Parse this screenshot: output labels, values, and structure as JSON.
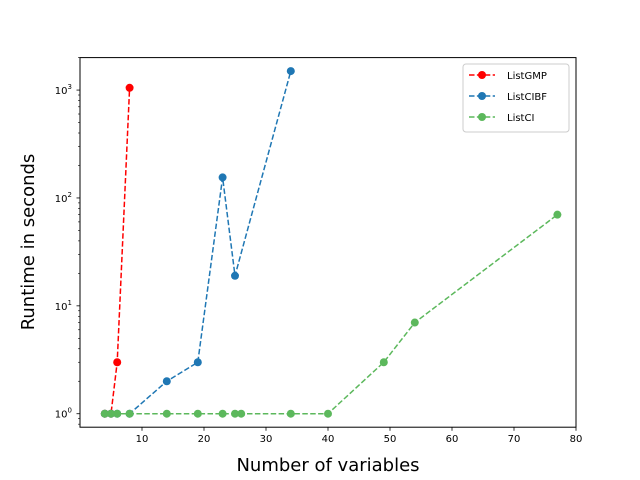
{
  "chart_data": {
    "type": "line",
    "title": "",
    "xlabel": "Number of variables",
    "ylabel": "Runtime in seconds",
    "xlim": [
      0,
      80
    ],
    "ylim": [
      0.75,
      2000
    ],
    "yscale": "log",
    "grid": false,
    "legend_position": "top-right",
    "x_ticks": [
      10,
      20,
      30,
      40,
      50,
      60,
      70,
      80
    ],
    "y_ticks": [
      1,
      10,
      100,
      1000
    ],
    "y_tick_labels": [
      {
        "base": "10",
        "exp": "0"
      },
      {
        "base": "10",
        "exp": "1"
      },
      {
        "base": "10",
        "exp": "2"
      },
      {
        "base": "10",
        "exp": "3"
      }
    ],
    "series": [
      {
        "name": "ListGMP",
        "color": "#ff0000",
        "points": [
          [
            4,
            1
          ],
          [
            5,
            1
          ],
          [
            6,
            3
          ],
          [
            8,
            1050
          ]
        ]
      },
      {
        "name": "ListCIBF",
        "color": "#1f77b4",
        "points": [
          [
            4,
            1
          ],
          [
            5,
            1
          ],
          [
            6,
            1
          ],
          [
            8,
            1
          ],
          [
            14,
            2
          ],
          [
            19,
            3
          ],
          [
            23,
            155
          ],
          [
            25,
            19
          ],
          [
            34,
            1500
          ]
        ]
      },
      {
        "name": "ListCI",
        "color": "#5cb85c",
        "points": [
          [
            4,
            1
          ],
          [
            5,
            1
          ],
          [
            6,
            1
          ],
          [
            8,
            1
          ],
          [
            14,
            1
          ],
          [
            19,
            1
          ],
          [
            23,
            1
          ],
          [
            25,
            1
          ],
          [
            26,
            1
          ],
          [
            34,
            1
          ],
          [
            40,
            1
          ],
          [
            49,
            3
          ],
          [
            54,
            7
          ],
          [
            77,
            70
          ]
        ]
      }
    ]
  }
}
